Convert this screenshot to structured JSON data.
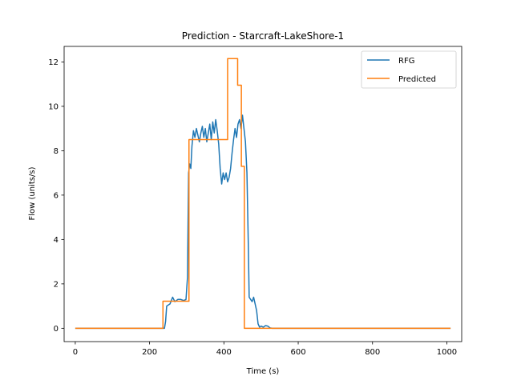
{
  "chart_data": {
    "type": "line",
    "title": "Prediction - Starcraft-LakeShore-1",
    "xlabel": "Time (s)",
    "ylabel": "Flow (units/s)",
    "xlim": [
      -30,
      1040
    ],
    "ylim": [
      -0.6,
      12.7
    ],
    "xticks": [
      0,
      200,
      400,
      600,
      800,
      1000
    ],
    "yticks": [
      0,
      2,
      4,
      6,
      8,
      10,
      12
    ],
    "grid": false,
    "legend": "top-right",
    "series": [
      {
        "name": "RFG",
        "color": "#1f77b4",
        "points": [
          [
            0,
            0
          ],
          [
            200,
            0
          ],
          [
            234,
            0
          ],
          [
            240,
            0
          ],
          [
            243,
            0.3
          ],
          [
            246,
            1.0
          ],
          [
            255,
            1.1
          ],
          [
            262,
            1.4
          ],
          [
            268,
            1.2
          ],
          [
            276,
            1.3
          ],
          [
            284,
            1.3
          ],
          [
            292,
            1.25
          ],
          [
            298,
            1.3
          ],
          [
            302,
            2.3
          ],
          [
            305,
            7.0
          ],
          [
            308,
            7.4
          ],
          [
            311,
            7.2
          ],
          [
            314,
            8.2
          ],
          [
            318,
            8.9
          ],
          [
            322,
            8.6
          ],
          [
            326,
            9.0
          ],
          [
            330,
            8.7
          ],
          [
            334,
            8.4
          ],
          [
            338,
            8.8
          ],
          [
            342,
            9.1
          ],
          [
            346,
            8.6
          ],
          [
            350,
            9.0
          ],
          [
            354,
            8.4
          ],
          [
            358,
            8.8
          ],
          [
            362,
            9.2
          ],
          [
            366,
            8.5
          ],
          [
            370,
            9.3
          ],
          [
            374,
            8.8
          ],
          [
            378,
            9.4
          ],
          [
            382,
            8.9
          ],
          [
            386,
            8.3
          ],
          [
            390,
            7.2
          ],
          [
            394,
            6.5
          ],
          [
            398,
            7.0
          ],
          [
            402,
            6.7
          ],
          [
            406,
            7.0
          ],
          [
            410,
            6.6
          ],
          [
            414,
            6.8
          ],
          [
            418,
            7.2
          ],
          [
            422,
            7.9
          ],
          [
            426,
            8.5
          ],
          [
            430,
            9.0
          ],
          [
            434,
            8.6
          ],
          [
            438,
            9.2
          ],
          [
            442,
            9.4
          ],
          [
            446,
            9.0
          ],
          [
            450,
            9.6
          ],
          [
            454,
            9.0
          ],
          [
            458,
            8.4
          ],
          [
            462,
            7.0
          ],
          [
            466,
            3.5
          ],
          [
            468,
            1.4
          ],
          [
            472,
            1.3
          ],
          [
            476,
            1.2
          ],
          [
            480,
            1.4
          ],
          [
            484,
            1.1
          ],
          [
            488,
            0.8
          ],
          [
            492,
            0.2
          ],
          [
            496,
            0.05
          ],
          [
            500,
            0.1
          ],
          [
            506,
            0.05
          ],
          [
            512,
            0.12
          ],
          [
            518,
            0.1
          ],
          [
            524,
            0.02
          ],
          [
            530,
            0
          ],
          [
            600,
            0
          ],
          [
            800,
            0
          ],
          [
            1010,
            0
          ]
        ]
      },
      {
        "name": "Predicted",
        "color": "#ff7f0e",
        "points": [
          [
            0,
            0
          ],
          [
            236,
            0
          ],
          [
            236,
            1.22
          ],
          [
            306,
            1.22
          ],
          [
            306,
            8.5
          ],
          [
            410,
            8.5
          ],
          [
            410,
            12.15
          ],
          [
            437,
            12.15
          ],
          [
            437,
            10.95
          ],
          [
            447,
            10.95
          ],
          [
            447,
            7.3
          ],
          [
            455,
            7.3
          ],
          [
            455,
            0
          ],
          [
            1010,
            0
          ]
        ]
      }
    ]
  }
}
